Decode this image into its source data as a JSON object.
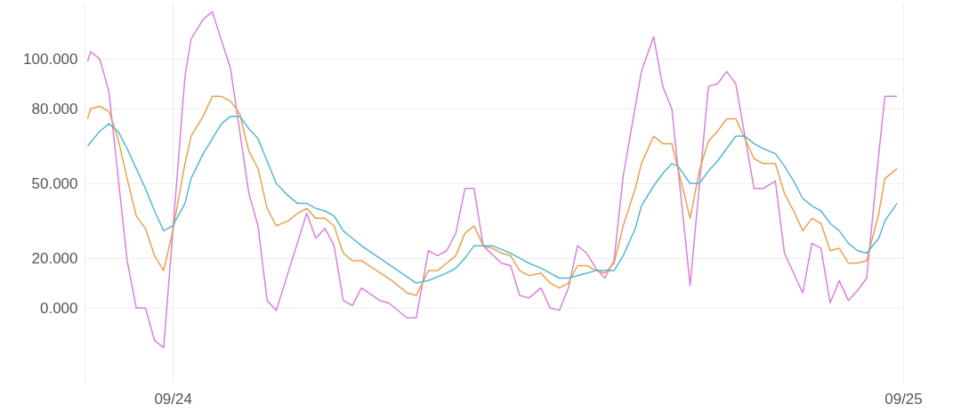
{
  "chart_data": {
    "type": "line",
    "xlim": [
      "--09-23T21:06",
      "--09-25T00:00"
    ],
    "xticks": [
      {
        "value": "--09-24",
        "label": "09/24"
      },
      {
        "value": "--09-25",
        "label": "09/25"
      }
    ],
    "ylim": [
      -30,
      123
    ],
    "yticks": [
      {
        "value": 0,
        "label": "0.000"
      },
      {
        "value": 20,
        "label": "20.000"
      },
      {
        "value": 50,
        "label": "50.000"
      },
      {
        "value": 80,
        "label": "80.000"
      },
      {
        "value": 100,
        "label": "100.000"
      }
    ],
    "grid": true,
    "legend": false,
    "marker": "none",
    "line_style": "solid",
    "series": [
      {
        "color": "#da80da",
        "x": [
          "--09-23T21:12",
          "--09-23T21:18",
          "--09-23T21:36",
          "--09-23T21:54",
          "--09-23T22:30",
          "--09-23T22:48",
          "--09-23T23:06",
          "--09-23T23:24",
          "--09-23T23:42",
          "--09-24T00:24",
          "--09-24T00:36",
          "--09-24T01:00",
          "--09-24T01:18",
          "--09-24T01:54",
          "--09-24T02:30",
          "--09-24T02:48",
          "--09-24T03:06",
          "--09-24T03:24",
          "--09-24T04:24",
          "--09-24T04:42",
          "--09-24T05:00",
          "--09-24T05:18",
          "--09-24T05:36",
          "--09-24T05:54",
          "--09-24T06:12",
          "--09-24T06:48",
          "--09-24T07:06",
          "--09-24T07:42",
          "--09-24T08:00",
          "--09-24T08:24",
          "--09-24T08:42",
          "--09-24T09:00",
          "--09-24T09:18",
          "--09-24T09:36",
          "--09-24T09:54",
          "--09-24T10:12",
          "--09-24T10:48",
          "--09-24T11:06",
          "--09-24T11:24",
          "--09-24T11:42",
          "--09-24T12:06",
          "--09-24T12:24",
          "--09-24T12:42",
          "--09-24T13:00",
          "--09-24T13:18",
          "--09-24T13:36",
          "--09-24T13:54",
          "--09-24T14:12",
          "--09-24T14:30",
          "--09-24T14:48",
          "--09-24T15:12",
          "--09-24T15:24",
          "--09-24T15:48",
          "--09-24T16:06",
          "--09-24T16:24",
          "--09-24T17:00",
          "--09-24T17:36",
          "--09-24T17:54",
          "--09-24T18:12",
          "--09-24T18:30",
          "--09-24T19:06",
          "--09-24T19:24",
          "--09-24T19:48",
          "--09-24T20:06",
          "--09-24T20:42",
          "--09-24T21:00",
          "--09-24T21:18",
          "--09-24T21:36",
          "--09-24T21:54",
          "--09-24T22:12",
          "--09-24T22:30",
          "--09-24T22:48",
          "--09-24T23:12",
          "--09-24T23:24",
          "--09-24T23:48"
        ],
        "values": [
          99,
          103,
          100,
          87,
          19,
          0,
          0,
          -13,
          -16,
          93,
          108,
          116,
          119,
          96,
          46,
          33,
          3,
          -1,
          38,
          28,
          32,
          25,
          3,
          1,
          8,
          3,
          2,
          -4,
          -4,
          23,
          21,
          23,
          30,
          48,
          48,
          25,
          18,
          17,
          5,
          4,
          8,
          0,
          -1,
          8,
          25,
          22,
          16,
          12,
          19,
          53,
          81,
          95,
          109,
          89,
          80,
          9,
          89,
          90,
          95,
          90,
          48,
          48,
          51,
          22,
          6,
          26,
          24,
          2,
          11,
          3,
          7,
          12,
          62,
          85,
          85
        ]
      },
      {
        "color": "#eba04e",
        "x": [
          "--09-23T21:12",
          "--09-23T21:18",
          "--09-23T21:36",
          "--09-23T21:54",
          "--09-23T22:12",
          "--09-23T22:30",
          "--09-23T22:48",
          "--09-23T23:06",
          "--09-23T23:24",
          "--09-23T23:42",
          "--09-24T00:00",
          "--09-24T00:24",
          "--09-24T00:36",
          "--09-24T01:00",
          "--09-24T01:18",
          "--09-24T01:36",
          "--09-24T01:54",
          "--09-24T02:12",
          "--09-24T02:30",
          "--09-24T02:48",
          "--09-24T03:06",
          "--09-24T03:24",
          "--09-24T03:48",
          "--09-24T04:06",
          "--09-24T04:24",
          "--09-24T04:42",
          "--09-24T05:00",
          "--09-24T05:18",
          "--09-24T05:36",
          "--09-24T05:54",
          "--09-24T06:12",
          "--09-24T07:12",
          "--09-24T07:42",
          "--09-24T08:00",
          "--09-24T08:24",
          "--09-24T08:42",
          "--09-24T09:00",
          "--09-24T09:18",
          "--09-24T09:36",
          "--09-24T09:54",
          "--09-24T10:12",
          "--09-24T10:30",
          "--09-24T10:48",
          "--09-24T11:06",
          "--09-24T11:24",
          "--09-24T11:42",
          "--09-24T12:06",
          "--09-24T12:24",
          "--09-24T12:42",
          "--09-24T13:00",
          "--09-24T13:18",
          "--09-24T13:36",
          "--09-24T13:54",
          "--09-24T14:12",
          "--09-24T14:30",
          "--09-24T14:48",
          "--09-24T15:12",
          "--09-24T15:24",
          "--09-24T15:48",
          "--09-24T16:06",
          "--09-24T16:24",
          "--09-24T17:00",
          "--09-24T17:18",
          "--09-24T17:36",
          "--09-24T17:54",
          "--09-24T18:12",
          "--09-24T18:30",
          "--09-24T19:06",
          "--09-24T19:24",
          "--09-24T19:48",
          "--09-24T20:06",
          "--09-24T20:24",
          "--09-24T20:42",
          "--09-24T21:00",
          "--09-24T21:18",
          "--09-24T21:36",
          "--09-24T21:54",
          "--09-24T22:12",
          "--09-24T22:30",
          "--09-24T22:48",
          "--09-24T23:12",
          "--09-24T23:24",
          "--09-24T23:48"
        ],
        "values": [
          76,
          80,
          81,
          79,
          68,
          52,
          37,
          32,
          21,
          15,
          31,
          58,
          69,
          77,
          85,
          85,
          83,
          78,
          63,
          56,
          40,
          33,
          35,
          38,
          40,
          36,
          36,
          33,
          22,
          19,
          19,
          11,
          6,
          5,
          15,
          15,
          18,
          21,
          30,
          33,
          25,
          24,
          22,
          21,
          15,
          13,
          14,
          10,
          8,
          10,
          17,
          17,
          15,
          14,
          18,
          33,
          48,
          58,
          69,
          66,
          66,
          36,
          55,
          67,
          71,
          76,
          76,
          60,
          58,
          58,
          46,
          39,
          31,
          36,
          34,
          23,
          24,
          18,
          18,
          19,
          38,
          52,
          56
        ]
      },
      {
        "color": "#52b8d4",
        "x": [
          "--09-23T21:12",
          "--09-23T21:36",
          "--09-23T21:54",
          "--09-23T22:12",
          "--09-23T22:30",
          "--09-23T22:48",
          "--09-23T23:06",
          "--09-23T23:24",
          "--09-23T23:42",
          "--09-24T00:00",
          "--09-24T00:24",
          "--09-24T00:36",
          "--09-24T01:00",
          "--09-24T01:18",
          "--09-24T01:36",
          "--09-24T01:54",
          "--09-24T02:12",
          "--09-24T02:30",
          "--09-24T02:48",
          "--09-24T03:06",
          "--09-24T03:24",
          "--09-24T03:48",
          "--09-24T04:06",
          "--09-24T04:24",
          "--09-24T04:42",
          "--09-24T05:00",
          "--09-24T05:18",
          "--09-24T05:36",
          "--09-24T05:54",
          "--09-24T06:12",
          "--09-24T06:48",
          "--09-24T07:24",
          "--09-24T08:00",
          "--09-24T08:24",
          "--09-24T09:00",
          "--09-24T09:18",
          "--09-24T09:36",
          "--09-24T09:54",
          "--09-24T10:30",
          "--09-24T11:06",
          "--09-24T11:24",
          "--09-24T11:42",
          "--09-24T12:06",
          "--09-24T12:24",
          "--09-24T12:42",
          "--09-24T13:00",
          "--09-24T13:18",
          "--09-24T13:36",
          "--09-24T13:54",
          "--09-24T14:12",
          "--09-24T14:30",
          "--09-24T14:48",
          "--09-24T15:12",
          "--09-24T15:24",
          "--09-24T15:48",
          "--09-24T16:06",
          "--09-24T16:24",
          "--09-24T16:36",
          "--09-24T17:00",
          "--09-24T17:18",
          "--09-24T17:36",
          "--09-24T17:54",
          "--09-24T18:12",
          "--09-24T18:30",
          "--09-24T18:48",
          "--09-24T19:06",
          "--09-24T19:24",
          "--09-24T19:48",
          "--09-24T20:06",
          "--09-24T20:24",
          "--09-24T20:42",
          "--09-24T21:00",
          "--09-24T21:18",
          "--09-24T21:36",
          "--09-24T21:54",
          "--09-24T22:12",
          "--09-24T22:30",
          "--09-24T22:48",
          "--09-24T23:12",
          "--09-24T23:24",
          "--09-24T23:48"
        ],
        "values": [
          65,
          71,
          74,
          71,
          64,
          56,
          48,
          39,
          31,
          33,
          42,
          52,
          62,
          68,
          74,
          77,
          77,
          72,
          68,
          59,
          50,
          45,
          42,
          42,
          40,
          39,
          37,
          31,
          28,
          25,
          20,
          15,
          10,
          11,
          14,
          16,
          20,
          25,
          25,
          22,
          20,
          18,
          16,
          14,
          12,
          12,
          13,
          14,
          15,
          15,
          15,
          21,
          32,
          41,
          49,
          54,
          58,
          57,
          50,
          50,
          55,
          59,
          64,
          69,
          69,
          66,
          64,
          62,
          57,
          51,
          44,
          41,
          39,
          34,
          31,
          26,
          23,
          22,
          28,
          35,
          42
        ]
      }
    ]
  }
}
